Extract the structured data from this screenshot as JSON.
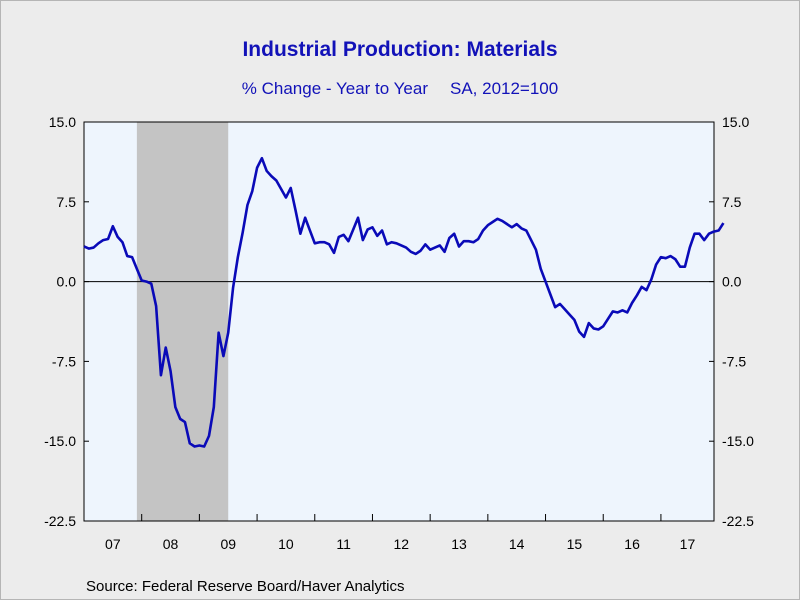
{
  "colors": {
    "background": "#ececec",
    "plot_background": "#eef5fd",
    "recession_band": "#c4c4c4",
    "series_line": "#0a0ab8",
    "title": "#1212b8"
  },
  "chart_data": {
    "type": "line",
    "title": "Industrial Production: Materials",
    "subtitle_left": "% Change - Year to Year",
    "subtitle_right": "SA, 2012=100",
    "source": "Source:  Federal Reserve Board/Haver Analytics",
    "xlabel": "",
    "ylabel": "",
    "ylim": [
      -22.5,
      15.0
    ],
    "xlim": [
      2007.0,
      2017.92
    ],
    "yticks": [
      15.0,
      7.5,
      0.0,
      -7.5,
      -15.0,
      -22.5
    ],
    "ytick_labels": [
      "15.0",
      "7.5",
      "0.0",
      "-7.5",
      "-15.0",
      "-22.5"
    ],
    "xtick_labels": [
      "07",
      "08",
      "09",
      "10",
      "11",
      "12",
      "13",
      "14",
      "15",
      "16",
      "17"
    ],
    "xtick_years": [
      2007,
      2008,
      2009,
      2010,
      2011,
      2012,
      2013,
      2014,
      2015,
      2016,
      2017
    ],
    "grid": false,
    "zero_line": true,
    "dual_y_axis": true,
    "shaded_regions": [
      {
        "label": "recession",
        "start": "2007-12",
        "end": "2009-06"
      }
    ],
    "series": [
      {
        "name": "",
        "color": "#0a0ab8",
        "frequency": "monthly",
        "start": "2007-01",
        "values": [
          3.3,
          3.1,
          3.2,
          3.6,
          3.9,
          4.0,
          5.2,
          4.2,
          3.7,
          2.4,
          2.3,
          1.2,
          0.1,
          0.0,
          -0.2,
          -2.3,
          -8.8,
          -6.2,
          -8.4,
          -11.8,
          -12.9,
          -13.2,
          -15.2,
          -15.5,
          -15.4,
          -15.5,
          -14.5,
          -11.8,
          -4.8,
          -7.0,
          -4.8,
          -0.6,
          2.3,
          4.6,
          7.2,
          8.5,
          10.7,
          11.6,
          10.4,
          9.9,
          9.5,
          8.7,
          7.9,
          8.8,
          6.7,
          4.5,
          6.0,
          4.8,
          3.6,
          3.7,
          3.7,
          3.5,
          2.7,
          4.2,
          4.4,
          3.8,
          4.9,
          6.0,
          3.9,
          4.9,
          5.1,
          4.3,
          4.8,
          3.5,
          3.7,
          3.6,
          3.4,
          3.2,
          2.8,
          2.6,
          2.9,
          3.5,
          3.0,
          3.2,
          3.4,
          2.8,
          4.1,
          4.5,
          3.3,
          3.8,
          3.8,
          3.7,
          4.0,
          4.8,
          5.3,
          5.6,
          5.9,
          5.7,
          5.4,
          5.1,
          5.4,
          5.0,
          4.8,
          3.9,
          3.0,
          1.2,
          0.0,
          -1.2,
          -2.4,
          -2.1,
          -2.6,
          -3.1,
          -3.6,
          -4.7,
          -5.2,
          -3.9,
          -4.4,
          -4.5,
          -4.2,
          -3.5,
          -2.8,
          -2.9,
          -2.7,
          -2.9,
          -2.0,
          -1.3,
          -0.5,
          -0.8,
          0.2,
          1.6,
          2.3,
          2.2,
          2.4,
          2.1,
          1.4,
          1.4,
          3.2,
          4.5,
          4.5,
          3.9,
          4.5,
          4.7,
          4.8,
          5.5
        ]
      }
    ]
  }
}
